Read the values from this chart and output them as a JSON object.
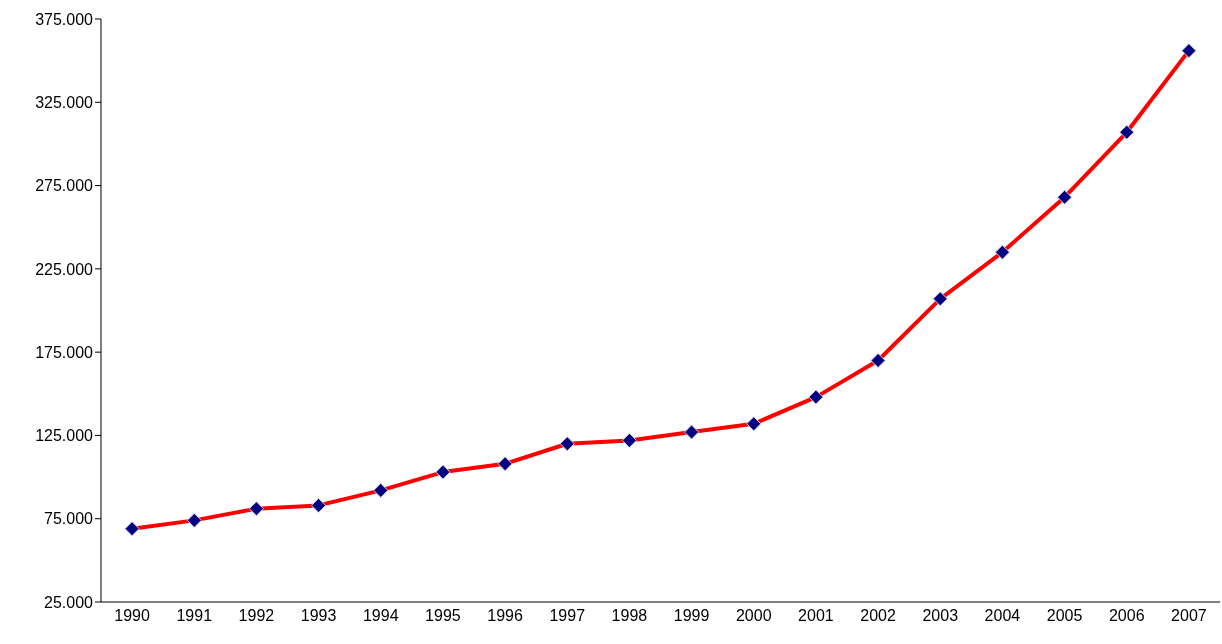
{
  "chart_data": {
    "type": "line",
    "categories": [
      "1990",
      "1991",
      "1992",
      "1993",
      "1994",
      "1995",
      "1996",
      "1997",
      "1998",
      "1999",
      "2000",
      "2001",
      "2002",
      "2003",
      "2004",
      "2005",
      "2006",
      "2007"
    ],
    "series": [
      {
        "color": "#ff0000",
        "colors": [
          "#000080",
          "#000080",
          "#000080",
          "#000080",
          "#000080",
          "#000080",
          "#000080",
          "#000080",
          "#000080",
          "#000080",
          "#000080",
          "#000080",
          "#000080",
          "#000080",
          "#000080",
          "#000080",
          "#000080",
          "#000080"
        ],
        "values": [
          69000,
          74000,
          81000,
          83000,
          92000,
          103000,
          108000,
          120000,
          122000,
          127000,
          132000,
          148000,
          170000,
          207000,
          235000,
          268000,
          307000,
          356000
        ]
      }
    ],
    "ylim": [
      25000,
      375000
    ],
    "yticks": [
      {
        "value": 25000,
        "label": "25.000"
      },
      {
        "value": 75000,
        "label": "75.000"
      },
      {
        "value": 125000,
        "label": "125.000"
      },
      {
        "value": 175000,
        "label": "175.000"
      },
      {
        "value": 225000,
        "label": "225.000"
      },
      {
        "value": 275000,
        "label": "275.000"
      },
      {
        "value": 325000,
        "label": "325.000"
      },
      {
        "value": 375000,
        "label": "375.000"
      }
    ],
    "marker": "diamond",
    "line_style": "solid"
  }
}
